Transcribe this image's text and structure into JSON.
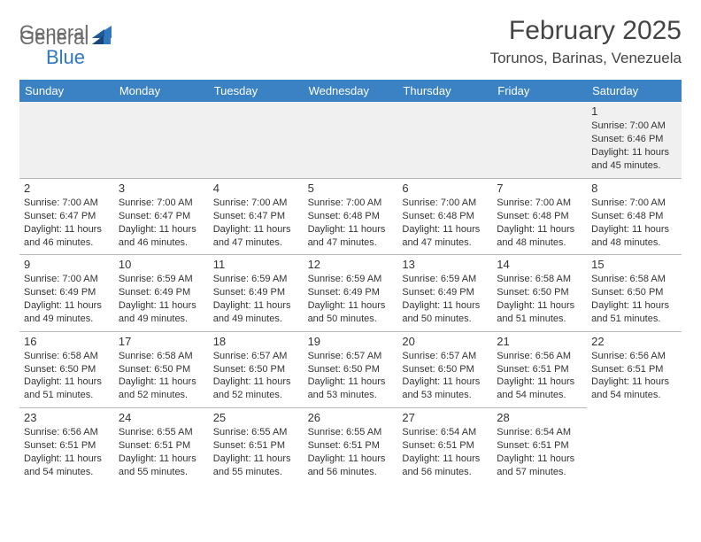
{
  "logo": {
    "text1": "General",
    "text2": "Blue"
  },
  "title": "February 2025",
  "location": "Torunos, Barinas, Venezuela",
  "colors": {
    "header_bg": "#3a82c4",
    "header_text": "#ffffff",
    "logo_gray": "#6b6b6b",
    "logo_blue": "#2f78c0",
    "cell_border": "#b8b8b8",
    "empty_row_bg": "#f0f0f0",
    "text": "#333333"
  },
  "typography": {
    "title_fontsize": 30,
    "location_fontsize": 17,
    "dow_fontsize": 13,
    "daynum_fontsize": 13,
    "detail_fontsize": 11
  },
  "layout": {
    "columns": 7,
    "cell_min_height": 86
  },
  "day_labels": [
    "Sunday",
    "Monday",
    "Tuesday",
    "Wednesday",
    "Thursday",
    "Friday",
    "Saturday"
  ],
  "days": [
    {
      "n": 1,
      "sunrise": "7:00 AM",
      "sunset": "6:46 PM",
      "daylight": "11 hours and 45 minutes."
    },
    {
      "n": 2,
      "sunrise": "7:00 AM",
      "sunset": "6:47 PM",
      "daylight": "11 hours and 46 minutes."
    },
    {
      "n": 3,
      "sunrise": "7:00 AM",
      "sunset": "6:47 PM",
      "daylight": "11 hours and 46 minutes."
    },
    {
      "n": 4,
      "sunrise": "7:00 AM",
      "sunset": "6:47 PM",
      "daylight": "11 hours and 47 minutes."
    },
    {
      "n": 5,
      "sunrise": "7:00 AM",
      "sunset": "6:48 PM",
      "daylight": "11 hours and 47 minutes."
    },
    {
      "n": 6,
      "sunrise": "7:00 AM",
      "sunset": "6:48 PM",
      "daylight": "11 hours and 47 minutes."
    },
    {
      "n": 7,
      "sunrise": "7:00 AM",
      "sunset": "6:48 PM",
      "daylight": "11 hours and 48 minutes."
    },
    {
      "n": 8,
      "sunrise": "7:00 AM",
      "sunset": "6:48 PM",
      "daylight": "11 hours and 48 minutes."
    },
    {
      "n": 9,
      "sunrise": "7:00 AM",
      "sunset": "6:49 PM",
      "daylight": "11 hours and 49 minutes."
    },
    {
      "n": 10,
      "sunrise": "6:59 AM",
      "sunset": "6:49 PM",
      "daylight": "11 hours and 49 minutes."
    },
    {
      "n": 11,
      "sunrise": "6:59 AM",
      "sunset": "6:49 PM",
      "daylight": "11 hours and 49 minutes."
    },
    {
      "n": 12,
      "sunrise": "6:59 AM",
      "sunset": "6:49 PM",
      "daylight": "11 hours and 50 minutes."
    },
    {
      "n": 13,
      "sunrise": "6:59 AM",
      "sunset": "6:49 PM",
      "daylight": "11 hours and 50 minutes."
    },
    {
      "n": 14,
      "sunrise": "6:58 AM",
      "sunset": "6:50 PM",
      "daylight": "11 hours and 51 minutes."
    },
    {
      "n": 15,
      "sunrise": "6:58 AM",
      "sunset": "6:50 PM",
      "daylight": "11 hours and 51 minutes."
    },
    {
      "n": 16,
      "sunrise": "6:58 AM",
      "sunset": "6:50 PM",
      "daylight": "11 hours and 51 minutes."
    },
    {
      "n": 17,
      "sunrise": "6:58 AM",
      "sunset": "6:50 PM",
      "daylight": "11 hours and 52 minutes."
    },
    {
      "n": 18,
      "sunrise": "6:57 AM",
      "sunset": "6:50 PM",
      "daylight": "11 hours and 52 minutes."
    },
    {
      "n": 19,
      "sunrise": "6:57 AM",
      "sunset": "6:50 PM",
      "daylight": "11 hours and 53 minutes."
    },
    {
      "n": 20,
      "sunrise": "6:57 AM",
      "sunset": "6:50 PM",
      "daylight": "11 hours and 53 minutes."
    },
    {
      "n": 21,
      "sunrise": "6:56 AM",
      "sunset": "6:51 PM",
      "daylight": "11 hours and 54 minutes."
    },
    {
      "n": 22,
      "sunrise": "6:56 AM",
      "sunset": "6:51 PM",
      "daylight": "11 hours and 54 minutes."
    },
    {
      "n": 23,
      "sunrise": "6:56 AM",
      "sunset": "6:51 PM",
      "daylight": "11 hours and 54 minutes."
    },
    {
      "n": 24,
      "sunrise": "6:55 AM",
      "sunset": "6:51 PM",
      "daylight": "11 hours and 55 minutes."
    },
    {
      "n": 25,
      "sunrise": "6:55 AM",
      "sunset": "6:51 PM",
      "daylight": "11 hours and 55 minutes."
    },
    {
      "n": 26,
      "sunrise": "6:55 AM",
      "sunset": "6:51 PM",
      "daylight": "11 hours and 56 minutes."
    },
    {
      "n": 27,
      "sunrise": "6:54 AM",
      "sunset": "6:51 PM",
      "daylight": "11 hours and 56 minutes."
    },
    {
      "n": 28,
      "sunrise": "6:54 AM",
      "sunset": "6:51 PM",
      "daylight": "11 hours and 57 minutes."
    }
  ],
  "labels": {
    "sunrise": "Sunrise:",
    "sunset": "Sunset:",
    "daylight": "Daylight:"
  },
  "first_day_column": 6
}
